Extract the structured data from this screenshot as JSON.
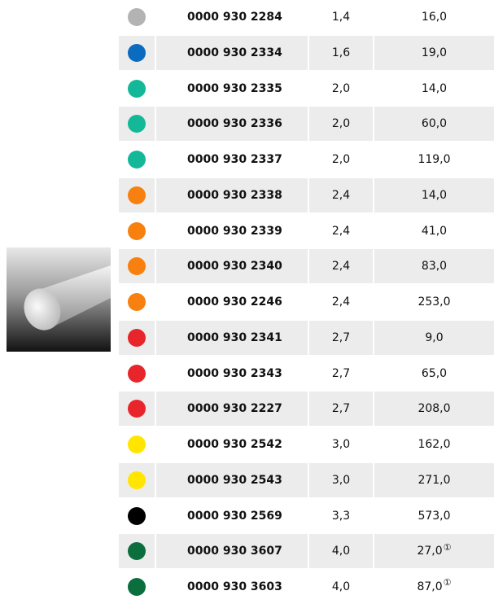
{
  "table": {
    "rows": [
      {
        "color": "#b3b3b3",
        "part": "0000 930 2284",
        "diameter": "1,4",
        "length": "16,0"
      },
      {
        "color": "#0a6bbf",
        "part": "0000 930 2334",
        "diameter": "1,6",
        "length": "19,0"
      },
      {
        "color": "#13b898",
        "part": "0000 930 2335",
        "diameter": "2,0",
        "length": "14,0"
      },
      {
        "color": "#13b898",
        "part": "0000 930 2336",
        "diameter": "2,0",
        "length": "60,0"
      },
      {
        "color": "#13b898",
        "part": "0000 930 2337",
        "diameter": "2,0",
        "length": "119,0"
      },
      {
        "color": "#f7800f",
        "part": "0000 930 2338",
        "diameter": "2,4",
        "length": "14,0"
      },
      {
        "color": "#f7800f",
        "part": "0000 930 2339",
        "diameter": "2,4",
        "length": "41,0"
      },
      {
        "color": "#f7800f",
        "part": "0000 930 2340",
        "diameter": "2,4",
        "length": "83,0"
      },
      {
        "color": "#f7800f",
        "part": "0000 930 2246",
        "diameter": "2,4",
        "length": "253,0"
      },
      {
        "color": "#e8252b",
        "part": "0000 930 2341",
        "diameter": "2,7",
        "length": "9,0"
      },
      {
        "color": "#e8252b",
        "part": "0000 930 2343",
        "diameter": "2,7",
        "length": "65,0"
      },
      {
        "color": "#e8252b",
        "part": "0000 930 2227",
        "diameter": "2,7",
        "length": "208,0"
      },
      {
        "color": "#ffe500",
        "part": "0000 930 2542",
        "diameter": "3,0",
        "length": "162,0"
      },
      {
        "color": "#ffe500",
        "part": "0000 930 2543",
        "diameter": "3,0",
        "length": "271,0"
      },
      {
        "color": "#000000",
        "part": "0000 930 2569",
        "diameter": "3,3",
        "length": "573,0"
      },
      {
        "color": "#0b6e3d",
        "part": "0000 930 3607",
        "diameter": "4,0",
        "length": "27,0",
        "note": "①"
      },
      {
        "color": "#0b6e3d",
        "part": "0000 930 3603",
        "diameter": "4,0",
        "length": "87,0",
        "note": "①"
      }
    ]
  }
}
